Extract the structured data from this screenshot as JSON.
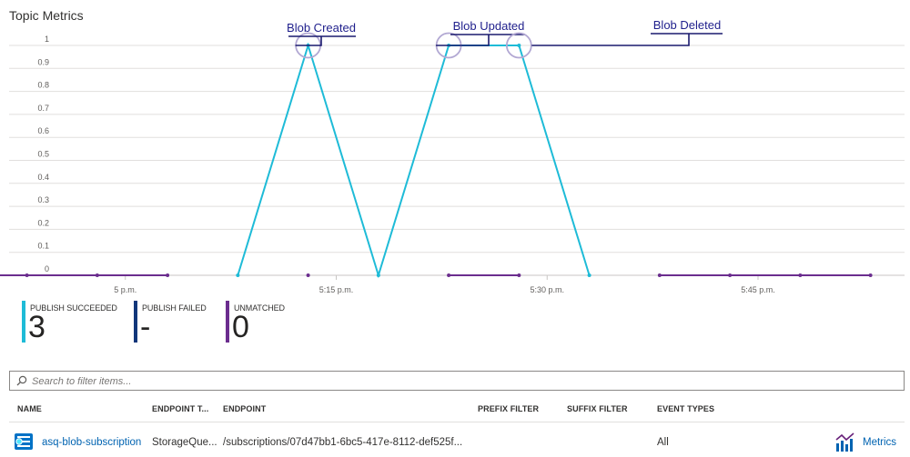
{
  "page": {
    "title": "Topic Metrics"
  },
  "chart_data": {
    "type": "line",
    "title": "Topic Metrics",
    "ylim": [
      0,
      1
    ],
    "yticks": [
      "0",
      "0.1",
      "0.2",
      "0.3",
      "0.4",
      "0.5",
      "0.6",
      "0.7",
      "0.8",
      "0.9",
      "1"
    ],
    "xtick_labels": [
      "5 p.m.",
      "5:15 p.m.",
      "5:30 p.m.",
      "5:45 p.m."
    ],
    "xtick_minutes": [
      5,
      20,
      35,
      50
    ],
    "x_minutes": [
      -9.5,
      -7,
      -2,
      3,
      8,
      13,
      18,
      23,
      28,
      33,
      38,
      43,
      48,
      53,
      58
    ],
    "series": [
      {
        "name": "PUBLISH SUCCEEDED",
        "color": "#1ebbd7",
        "values": [
          null,
          null,
          null,
          null,
          null,
          0,
          1,
          0,
          1,
          1,
          0,
          null,
          null,
          null,
          null
        ]
      },
      {
        "name": "UNMATCHED",
        "color": "#6b2d8e",
        "values": [
          0,
          0,
          0,
          0,
          0,
          null,
          0,
          null,
          0,
          0,
          null,
          0,
          0,
          0,
          0
        ]
      }
    ],
    "annotations": [
      {
        "text": "Blob Created",
        "point_index": 6
      },
      {
        "text": "Blob Updated",
        "point_index": 8
      },
      {
        "text": "Blob Deleted",
        "point_index": 9
      }
    ],
    "grid": true
  },
  "legend": [
    {
      "label": "PUBLISH SUCCEEDED",
      "value": "3",
      "color": "#1ebbd7"
    },
    {
      "label": "PUBLISH FAILED",
      "value": "-",
      "color": "#11367a"
    },
    {
      "label": "UNMATCHED",
      "value": "0",
      "color": "#6b2d8e"
    }
  ],
  "search": {
    "placeholder": "Search to filter items...",
    "value": ""
  },
  "table": {
    "headers": [
      "NAME",
      "ENDPOINT T...",
      "ENDPOINT",
      "PREFIX FILTER",
      "SUFFIX FILTER",
      "EVENT TYPES"
    ],
    "rows": [
      {
        "name": "asq-blob-subscription",
        "endpoint_type": "StorageQue...",
        "endpoint": "/subscriptions/07d47bb1-6bc5-417e-8112-def525f...",
        "prefix_filter": "",
        "suffix_filter": "",
        "event_types": "All",
        "action": "Metrics"
      }
    ]
  },
  "icons": {
    "search": "search-icon",
    "row": "event-subscription-icon",
    "metrics": "metrics-chart-icon"
  }
}
